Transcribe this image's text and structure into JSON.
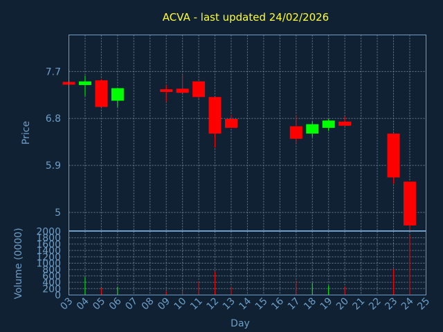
{
  "chart_data": {
    "type": "candlestick",
    "title": "ACVA - last updated 24/02/2026",
    "xlabel": "Day",
    "ylabel": "Price",
    "volume_label": "Volume (0000)",
    "x_ticks": [
      "03",
      "04",
      "05",
      "06",
      "07",
      "08",
      "09",
      "10",
      "11",
      "12",
      "13",
      "14",
      "15",
      "16",
      "17",
      "18",
      "19",
      "20",
      "21",
      "22",
      "23",
      "24",
      "25"
    ],
    "price_ticks": [
      7.7,
      6.8,
      5.9,
      5
    ],
    "price_tick_labels": [
      "7.7",
      "6.8",
      "5.9",
      "5"
    ],
    "price_ylim": [
      4.65,
      8.4
    ],
    "volume_ticks": [
      0,
      200,
      400,
      600,
      800,
      1000,
      1200,
      1400,
      1600,
      1800,
      2000
    ],
    "volume_tick_labels": [
      "0",
      "200",
      "400",
      "600",
      "800",
      "1000",
      "1200",
      "1400",
      "1600",
      "1800",
      "2000"
    ],
    "volume_ylim": [
      0,
      2000
    ],
    "grid": true,
    "up_color": "#00ff00",
    "down_color": "#ff0000",
    "candles": [
      {
        "day": "03",
        "open": 7.5,
        "close": 7.46,
        "high": 7.5,
        "low": 7.46,
        "volume": 30
      },
      {
        "day": "04",
        "open": 7.44,
        "close": 7.51,
        "high": 7.62,
        "low": 7.23,
        "volume": 560
      },
      {
        "day": "05",
        "open": 7.53,
        "close": 7.02,
        "high": 7.55,
        "low": 7.02,
        "volume": 220
      },
      {
        "day": "06",
        "open": 7.14,
        "close": 7.38,
        "high": 7.38,
        "low": 7.02,
        "volume": 260
      },
      {
        "day": "09",
        "open": 7.36,
        "close": 7.32,
        "high": 7.44,
        "low": 7.12,
        "volume": 120
      },
      {
        "day": "10",
        "open": 7.37,
        "close": 7.29,
        "high": 7.64,
        "low": 7.29,
        "volume": 130
      },
      {
        "day": "11",
        "open": 7.51,
        "close": 7.21,
        "high": 7.51,
        "low": 7.18,
        "volume": 430
      },
      {
        "day": "12",
        "open": 7.21,
        "close": 6.51,
        "high": 7.21,
        "low": 6.24,
        "volume": 730
      },
      {
        "day": "13",
        "open": 6.79,
        "close": 6.62,
        "high": 6.87,
        "low": 6.62,
        "volume": 250
      },
      {
        "day": "17",
        "open": 6.65,
        "close": 6.41,
        "high": 6.86,
        "low": 6.32,
        "volume": 450
      },
      {
        "day": "18",
        "open": 6.51,
        "close": 6.69,
        "high": 6.74,
        "low": 6.44,
        "volume": 380
      },
      {
        "day": "19",
        "open": 6.62,
        "close": 6.76,
        "high": 6.79,
        "low": 6.56,
        "volume": 300
      },
      {
        "day": "20",
        "open": 6.74,
        "close": 6.66,
        "high": 6.84,
        "low": 6.66,
        "volume": 270
      },
      {
        "day": "23",
        "open": 6.51,
        "close": 5.67,
        "high": 6.51,
        "low": 5.55,
        "volume": 810
      },
      {
        "day": "24",
        "open": 5.59,
        "close": 4.75,
        "high": 5.59,
        "low": 4.65,
        "volume": 1880
      }
    ]
  }
}
